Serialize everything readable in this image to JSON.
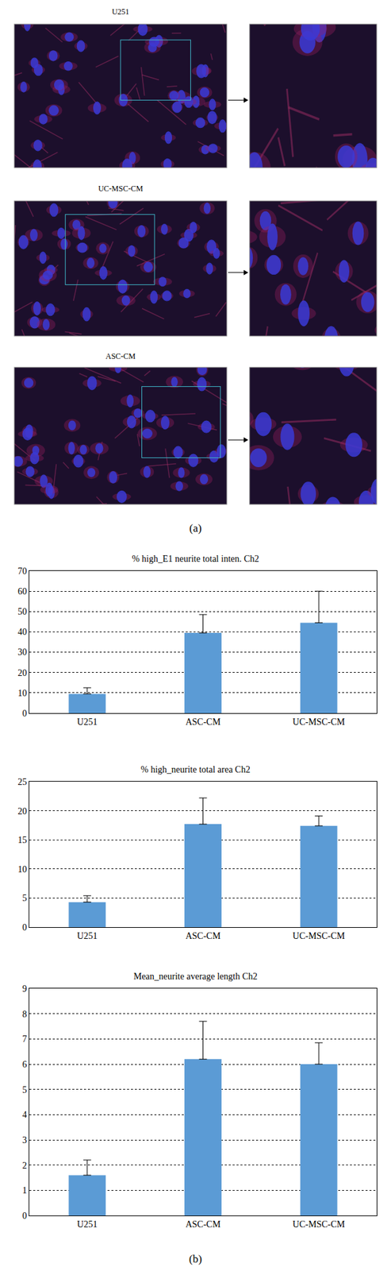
{
  "panels": {
    "a": {
      "label": "(a)",
      "images": [
        {
          "title": "U251"
        },
        {
          "title": "UC-MSC-CM"
        },
        {
          "title": "ASC-CM"
        }
      ]
    },
    "b": {
      "label": "(b)"
    }
  },
  "chart_data": [
    {
      "type": "bar",
      "title": "% high_E1 neurite total inten. Ch2",
      "categories": [
        "U251",
        "ASC-CM",
        "UC-MSC-CM"
      ],
      "values": [
        9.5,
        39.5,
        44.5
      ],
      "errors": [
        3,
        9,
        15.5
      ],
      "color": "#5b9bd5",
      "ylim": [
        0,
        70
      ],
      "yticks": [
        0,
        10,
        20,
        30,
        40,
        50,
        60,
        70
      ],
      "grid": true
    },
    {
      "type": "bar",
      "title": "% high_neurite total area Ch2",
      "categories": [
        "U251",
        "ASC-CM",
        "UC-MSC-CM"
      ],
      "values": [
        4.3,
        17.7,
        17.4
      ],
      "errors": [
        1.1,
        4.5,
        1.7
      ],
      "color": "#5b9bd5",
      "ylim": [
        0,
        25
      ],
      "yticks": [
        0,
        5,
        10,
        15,
        20,
        25
      ],
      "grid": true
    },
    {
      "type": "bar",
      "title": "Mean_neurite average length Ch2",
      "categories": [
        "U251",
        "ASC-CM",
        "UC-MSC-CM"
      ],
      "values": [
        1.6,
        6.2,
        6.0
      ],
      "errors": [
        0.6,
        1.5,
        0.85
      ],
      "color": "#5b9bd5",
      "ylim": [
        0,
        9
      ],
      "yticks": [
        0,
        1,
        2,
        3,
        4,
        5,
        6,
        7,
        8,
        9
      ],
      "grid": true
    }
  ]
}
